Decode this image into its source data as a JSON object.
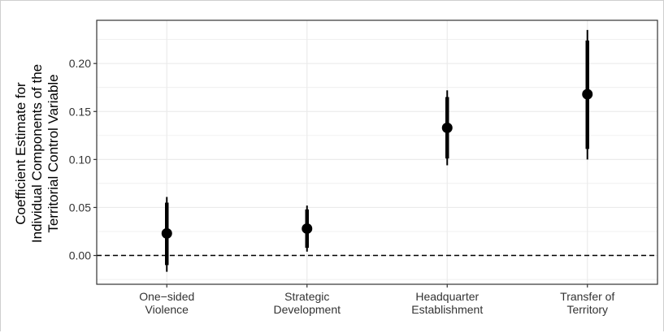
{
  "chart_data": {
    "type": "scatter",
    "title": "",
    "xlabel": "",
    "ylabel_lines": [
      "Coefficient Estimate for",
      "Individual Components of the",
      "Territorial Control Variable"
    ],
    "categories": [
      [
        "One−sided",
        "Violence"
      ],
      [
        "Strategic",
        "Development"
      ],
      [
        "Headquarter",
        "Establishment"
      ],
      [
        "Transfer of",
        "Territory"
      ]
    ],
    "estimates": [
      0.023,
      0.028,
      0.133,
      0.168
    ],
    "ci_inner": [
      [
        -0.01,
        0.055
      ],
      [
        0.008,
        0.048
      ],
      [
        0.101,
        0.165
      ],
      [
        0.111,
        0.224
      ]
    ],
    "ci_outer": [
      [
        -0.017,
        0.061
      ],
      [
        0.004,
        0.052
      ],
      [
        0.094,
        0.172
      ],
      [
        0.1,
        0.235
      ]
    ],
    "reference_line": 0.0,
    "yticks": [
      0.0,
      0.05,
      0.1,
      0.15,
      0.2
    ],
    "ytick_labels": [
      "0.00",
      "0.05",
      "0.10",
      "0.15",
      "0.20"
    ],
    "ylim": [
      -0.03,
      0.245
    ],
    "grid": true,
    "colors": {
      "marks": "#000000",
      "grid": "#ebebeb",
      "panel_border": "#333333"
    }
  }
}
